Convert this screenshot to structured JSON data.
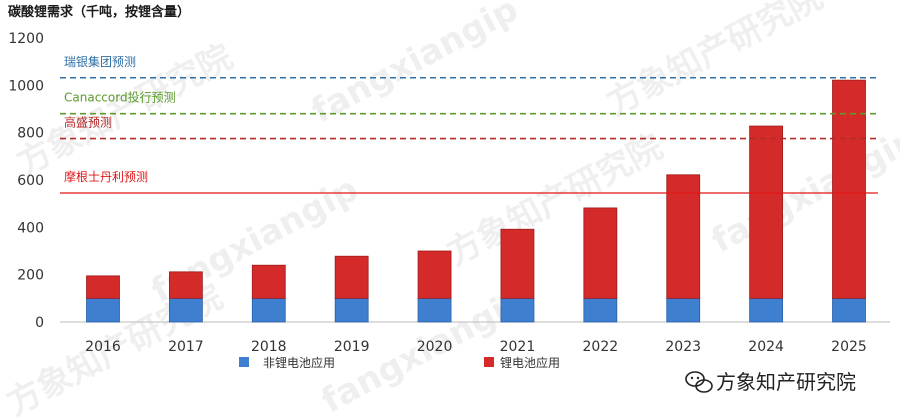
{
  "chart_data": {
    "type": "bar",
    "title": "碳酸锂需求（千吨，按锂含量）",
    "categories": [
      "2016",
      "2017",
      "2018",
      "2019",
      "2020",
      "2021",
      "2022",
      "2023",
      "2024",
      "2025"
    ],
    "series": [
      {
        "name": "非锂电池应用",
        "color": "#3f7fd0",
        "values": [
          100,
          100,
          100,
          100,
          100,
          100,
          100,
          100,
          100,
          100
        ]
      },
      {
        "name": "锂电池应用",
        "color": "#d42a2a",
        "values": [
          95,
          112,
          140,
          178,
          200,
          292,
          382,
          522,
          728,
          922
        ]
      }
    ],
    "stacked": true,
    "ylim": [
      0,
      1200
    ],
    "yticks": [
      0,
      200,
      400,
      600,
      800,
      1000,
      1200
    ],
    "grid": false,
    "legend_position": "bottom",
    "reference_lines": [
      {
        "label": "瑞银集团预测",
        "value": 1032,
        "color": "#2e6fa7",
        "style": "dashed"
      },
      {
        "label": "Canaccord投行预测",
        "value": 880,
        "color": "#5c9a2c",
        "style": "dashed"
      },
      {
        "label": "高盛预测",
        "value": 775,
        "color": "#b52a2a",
        "style": "dashed"
      },
      {
        "label": "摩根士丹利预测",
        "value": 545,
        "color": "#e01818",
        "style": "solid"
      }
    ]
  },
  "watermark": "方象知产研究院",
  "watermark_latin": "fangxiangip",
  "footer_brand": "方象知产研究院",
  "footer_icon": "wechat-icon"
}
